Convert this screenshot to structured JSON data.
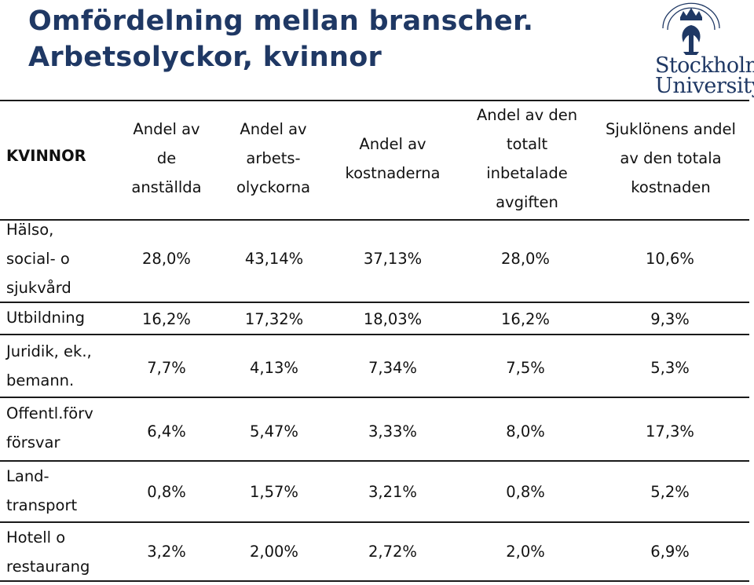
{
  "title": {
    "line1": "Omfördelning mellan branscher.",
    "line2": "Arbetsolyckor, kvinnor"
  },
  "logo": {
    "line1": "Stockholm",
    "line2": "University",
    "seal_text": "STOCKHOLMS UNIVERSITET",
    "icon": "crown-seal-icon"
  },
  "table": {
    "corner_label": "KVINNOR",
    "headers": [
      "Andel av\nde\nanställda",
      "Andel av\narbets-\nolyckorna",
      "Andel av\nkostnaderna",
      "Andel av den\ntotalt\ninbetalade\navgiften",
      "Sjuklönens andel\nav den totala\nkostnaden"
    ],
    "rows": [
      {
        "label": "Hälso,\nsocial- o\nsjukvård",
        "values": [
          "28,0%",
          "43,14%",
          "37,13%",
          "28,0%",
          "10,6%"
        ]
      },
      {
        "label": "Utbildning",
        "values": [
          "16,2%",
          "17,32%",
          "18,03%",
          "16,2%",
          "9,3%"
        ]
      },
      {
        "label": "Juridik, ek.,\nbemann.",
        "values": [
          "7,7%",
          "4,13%",
          "7,34%",
          "7,5%",
          "5,3%"
        ]
      },
      {
        "label": "Offentl.förv\nförsvar",
        "values": [
          "6,4%",
          "5,47%",
          "3,33%",
          "8,0%",
          "17,3%"
        ]
      },
      {
        "label": "Land-\ntransport",
        "values": [
          "0,8%",
          "1,57%",
          "3,21%",
          "0,8%",
          "5,2%"
        ]
      },
      {
        "label": "Hotell o\nrestaurang",
        "values": [
          "3,2%",
          "2,00%",
          "2,72%",
          "2,0%",
          "6,9%"
        ]
      }
    ]
  }
}
